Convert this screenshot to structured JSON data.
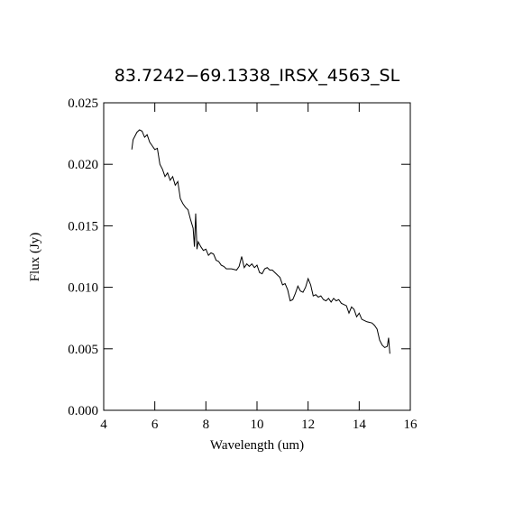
{
  "chart_data": {
    "type": "line",
    "title": "83.7242−69.1338_IRSX_4563_SL",
    "x_label": "Wavelength (um)",
    "y_label": "Flux (Jy)",
    "xlim": [
      4,
      16
    ],
    "xticks": [
      4,
      6,
      8,
      10,
      12,
      14,
      16
    ],
    "ylim": [
      0,
      0.025
    ],
    "yticks": [
      {
        "value": 0,
        "label": "0.000"
      },
      0.005,
      {
        "value": 0.01,
        "label": "0.010"
      },
      0.015,
      {
        "value": 0.02,
        "label": "0.020"
      },
      0.025
    ],
    "color": "#000000",
    "x": [
      5.1,
      5.15,
      5.3,
      5.4,
      5.5,
      5.6,
      5.7,
      5.8,
      5.9,
      6.0,
      6.1,
      6.2,
      6.3,
      6.4,
      6.5,
      6.6,
      6.7,
      6.8,
      6.9,
      7.0,
      7.1,
      7.2,
      7.3,
      7.4,
      7.5,
      7.55,
      7.6,
      7.65,
      7.7,
      7.8,
      7.9,
      8.0,
      8.1,
      8.2,
      8.3,
      8.4,
      8.5,
      8.6,
      8.7,
      8.8,
      9.0,
      9.2,
      9.3,
      9.4,
      9.5,
      9.6,
      9.7,
      9.8,
      9.9,
      10.0,
      10.1,
      10.2,
      10.3,
      10.4,
      10.5,
      10.6,
      10.7,
      10.8,
      10.9,
      11.0,
      11.1,
      11.2,
      11.3,
      11.4,
      11.5,
      11.6,
      11.7,
      11.8,
      11.9,
      12.0,
      12.1,
      12.2,
      12.3,
      12.4,
      12.5,
      12.6,
      12.7,
      12.8,
      12.9,
      13.0,
      13.1,
      13.2,
      13.3,
      13.4,
      13.5,
      13.6,
      13.7,
      13.8,
      13.9,
      14.0,
      14.1,
      14.2,
      14.3,
      14.5,
      14.6,
      14.7,
      14.8,
      14.9,
      15.0,
      15.1,
      15.15,
      15.2
    ],
    "values": [
      0.0212,
      0.022,
      0.0226,
      0.0228,
      0.0227,
      0.0222,
      0.0224,
      0.0218,
      0.0215,
      0.0212,
      0.0213,
      0.02,
      0.0196,
      0.019,
      0.0193,
      0.0187,
      0.019,
      0.0183,
      0.0186,
      0.0172,
      0.0168,
      0.0165,
      0.0163,
      0.0155,
      0.0148,
      0.0133,
      0.016,
      0.0131,
      0.0137,
      0.0133,
      0.013,
      0.0131,
      0.0126,
      0.0128,
      0.0127,
      0.0122,
      0.0121,
      0.0118,
      0.0117,
      0.0115,
      0.0115,
      0.0114,
      0.0117,
      0.0125,
      0.0116,
      0.0119,
      0.0117,
      0.0119,
      0.0116,
      0.0118,
      0.0112,
      0.0111,
      0.0115,
      0.0116,
      0.0114,
      0.0114,
      0.0112,
      0.011,
      0.0108,
      0.0102,
      0.0103,
      0.0098,
      0.0089,
      0.009,
      0.0095,
      0.0101,
      0.0097,
      0.0096,
      0.01,
      0.0107,
      0.0102,
      0.0093,
      0.0094,
      0.0092,
      0.0093,
      0.009,
      0.0089,
      0.0091,
      0.0088,
      0.0091,
      0.0089,
      0.009,
      0.0087,
      0.0086,
      0.0085,
      0.0079,
      0.0084,
      0.0082,
      0.0076,
      0.0079,
      0.0074,
      0.0073,
      0.0072,
      0.0071,
      0.0069,
      0.0066,
      0.0057,
      0.0053,
      0.0051,
      0.0052,
      0.0059,
      0.0046
    ]
  }
}
